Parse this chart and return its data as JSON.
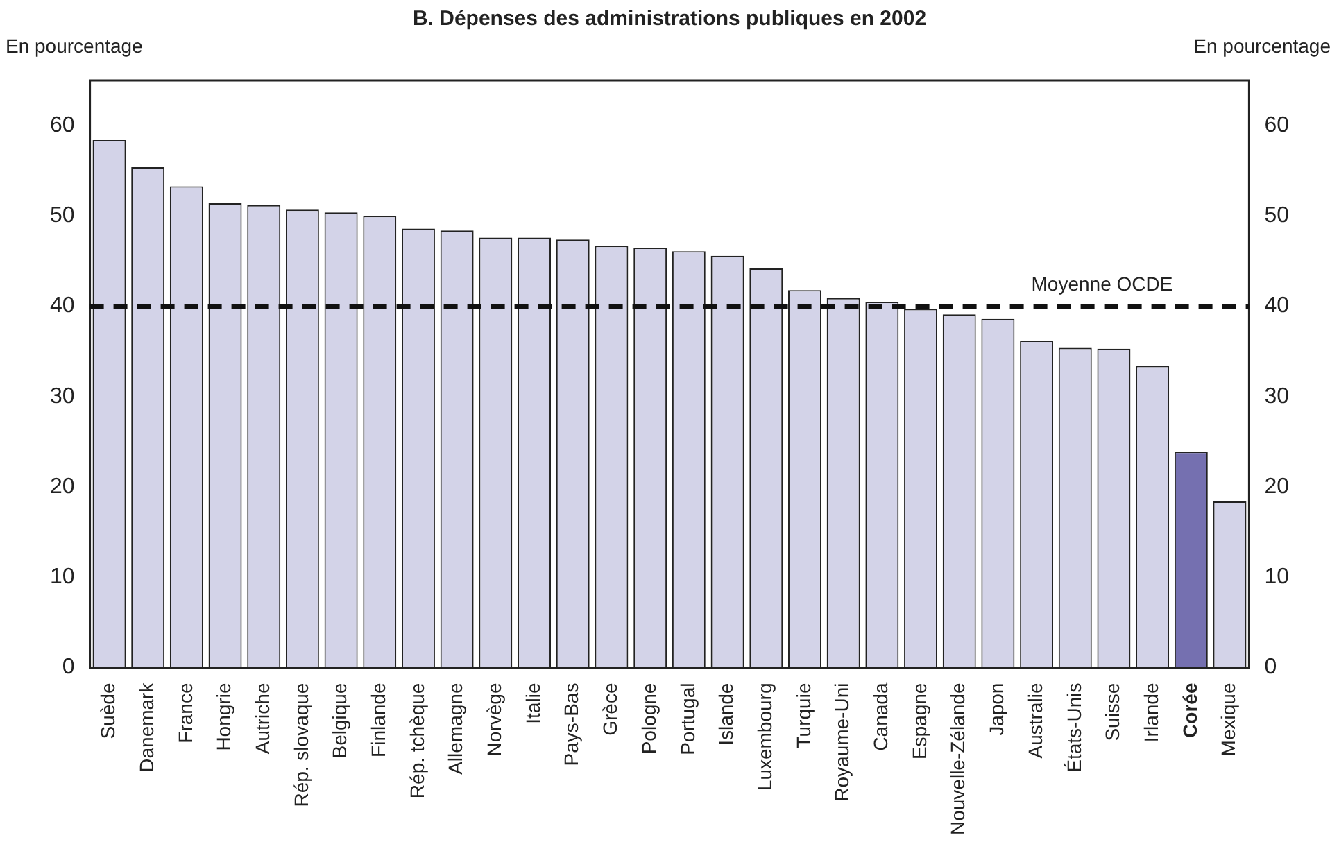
{
  "chart_data": {
    "type": "bar",
    "title": "B.  Dépenses des administrations publiques en 2002",
    "ylabel": "En pourcentage",
    "y2label": "En pourcentage",
    "categories": [
      "Suède",
      "Danemark",
      "France",
      "Hongrie",
      "Autriche",
      "Rép. slovaque",
      "Belgique",
      "Finlande",
      "Rép. tchèque",
      "Allemagne",
      "Norvège",
      "Italie",
      "Pays-Bas",
      "Grèce",
      "Pologne",
      "Portugal",
      "Islande",
      "Luxembourg",
      "Turquie",
      "Royaume-Uni",
      "Canada",
      "Espagne",
      "Nouvelle-Zélande",
      "Japon",
      "Australie",
      "États-Unis",
      "Suisse",
      "Irlande",
      "Corée",
      "Mexique"
    ],
    "values": [
      58.4,
      55.4,
      53.3,
      51.4,
      51.2,
      50.7,
      50.4,
      50.0,
      48.6,
      48.4,
      47.6,
      47.6,
      47.4,
      46.7,
      46.5,
      46.1,
      45.6,
      44.2,
      41.8,
      40.9,
      40.5,
      39.7,
      39.1,
      38.6,
      36.2,
      35.4,
      35.3,
      33.4,
      23.9,
      18.4
    ],
    "colors": [
      "#d3d3e8",
      "#d3d3e8",
      "#d3d3e8",
      "#d3d3e8",
      "#d3d3e8",
      "#d3d3e8",
      "#d3d3e8",
      "#d3d3e8",
      "#d3d3e8",
      "#d3d3e8",
      "#d3d3e8",
      "#d3d3e8",
      "#d3d3e8",
      "#d3d3e8",
      "#d3d3e8",
      "#d3d3e8",
      "#d3d3e8",
      "#d3d3e8",
      "#d3d3e8",
      "#d3d3e8",
      "#d3d3e8",
      "#d3d3e8",
      "#d3d3e8",
      "#d3d3e8",
      "#d3d3e8",
      "#d3d3e8",
      "#d3d3e8",
      "#d3d3e8",
      "#7570b0",
      "#d3d3e8"
    ],
    "ylim": [
      0,
      65
    ],
    "yticks": [
      0,
      10,
      20,
      30,
      40,
      50,
      60
    ],
    "y2lim": [
      0,
      65
    ],
    "y2ticks": [
      0,
      10,
      20,
      30,
      40,
      50,
      60
    ],
    "ref_lines": [
      {
        "axis": "y",
        "value": 40,
        "label": "Moyenne OCDE",
        "line_style": "dashed"
      }
    ],
    "grid": false,
    "legend": false
  }
}
